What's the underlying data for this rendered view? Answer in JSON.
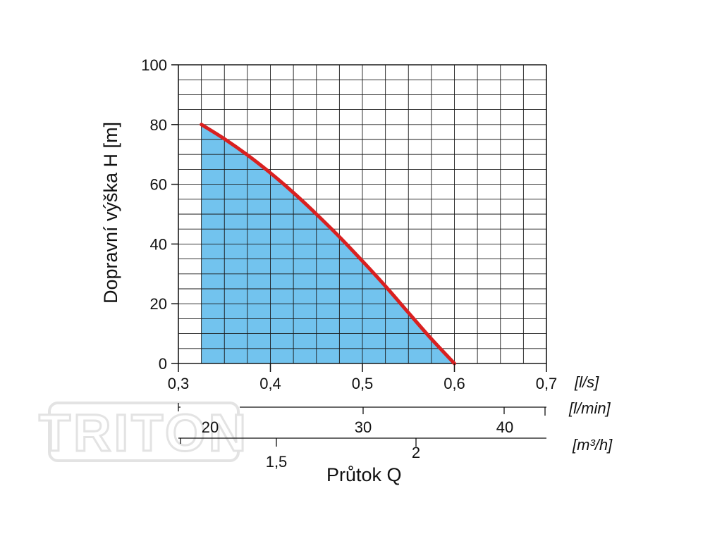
{
  "logo": {
    "text": "TRITON",
    "color": "#e3e3e3"
  },
  "chart_data": {
    "type": "area",
    "title": "",
    "xlabel": "Průtok Q",
    "ylabel": "Dopravní výška H [m]",
    "xlim": [
      0.3,
      0.7
    ],
    "ylim": [
      0,
      100
    ],
    "grid": true,
    "x_ticks": [
      "0,3",
      "0,4",
      "0,5",
      "0,6",
      "0,7"
    ],
    "y_ticks": [
      "0",
      "20",
      "40",
      "60",
      "80",
      "100"
    ],
    "series": [
      {
        "x": [
          0.325,
          0.35,
          0.375,
          0.4,
          0.425,
          0.45,
          0.475,
          0.5,
          0.525,
          0.55,
          0.575,
          0.6
        ],
        "y": [
          80,
          75.2,
          69.8,
          63.8,
          57.2,
          50,
          42.4,
          34.3,
          25.9,
          17,
          8.2,
          0
        ],
        "line_color": "#d92020",
        "fill_color": "#72c3ee"
      }
    ],
    "secondary_axes": [
      {
        "unit": "[l/s]",
        "ticks": []
      },
      {
        "unit": "[l/min]",
        "ticks": [
          "20",
          "30",
          "40"
        ]
      },
      {
        "unit": "[m³/h]",
        "ticks": [
          "1,5",
          "2"
        ]
      }
    ]
  }
}
